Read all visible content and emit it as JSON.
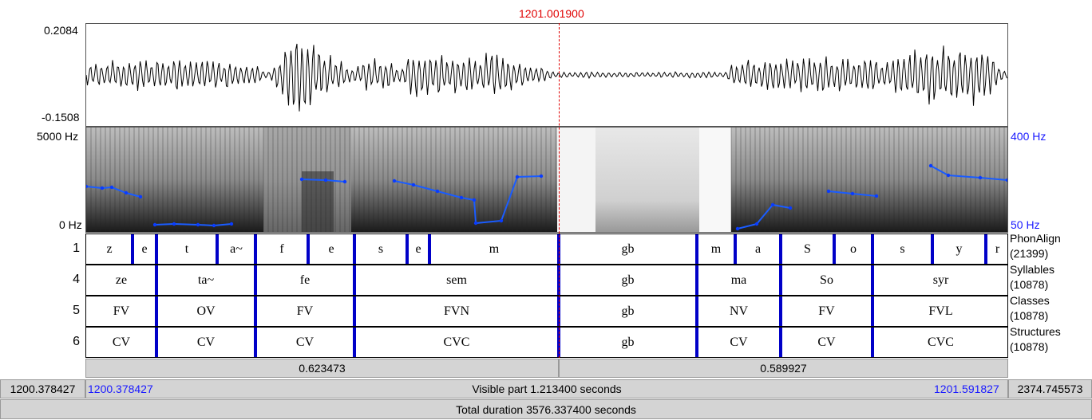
{
  "cursor_time": "1201.001900",
  "waveform": {
    "max_label": "0.2084",
    "min_label": "-0.1508"
  },
  "spectrogram": {
    "freq_top": "5000 Hz",
    "freq_bottom": "0 Hz",
    "pitch_top": "400 Hz",
    "pitch_bottom": "50 Hz"
  },
  "tiers": [
    {
      "number": "1",
      "name": "PhonAlign",
      "count": "(21399)",
      "intervals": [
        {
          "label": "z",
          "start": 0,
          "end": 58
        },
        {
          "label": "e",
          "start": 58,
          "end": 88
        },
        {
          "label": "t",
          "start": 88,
          "end": 164
        },
        {
          "label": "a~",
          "start": 164,
          "end": 212
        },
        {
          "label": "f",
          "start": 212,
          "end": 278
        },
        {
          "label": "e",
          "start": 278,
          "end": 336
        },
        {
          "label": "s",
          "start": 336,
          "end": 402
        },
        {
          "label": "e",
          "start": 402,
          "end": 430
        },
        {
          "label": "m",
          "start": 430,
          "end": 592
        },
        {
          "label": "gb",
          "start": 592,
          "end": 765
        },
        {
          "label": "m",
          "start": 765,
          "end": 813
        },
        {
          "label": "a",
          "start": 813,
          "end": 870
        },
        {
          "label": "S",
          "start": 870,
          "end": 937
        },
        {
          "label": "o",
          "start": 937,
          "end": 985
        },
        {
          "label": "s",
          "start": 985,
          "end": 1060
        },
        {
          "label": "y",
          "start": 1060,
          "end": 1127
        },
        {
          "label": "r",
          "start": 1127,
          "end": 1156
        }
      ]
    },
    {
      "number": "4",
      "name": "Syllables",
      "count": "(10878)",
      "intervals": [
        {
          "label": "ze",
          "start": 0,
          "end": 88
        },
        {
          "label": "ta~",
          "start": 88,
          "end": 212
        },
        {
          "label": "fe",
          "start": 212,
          "end": 336
        },
        {
          "label": "sem",
          "start": 336,
          "end": 592
        },
        {
          "label": "gb",
          "start": 592,
          "end": 765
        },
        {
          "label": "ma",
          "start": 765,
          "end": 870
        },
        {
          "label": "So",
          "start": 870,
          "end": 985
        },
        {
          "label": "syr",
          "start": 985,
          "end": 1156
        }
      ]
    },
    {
      "number": "5",
      "name": "Classes",
      "count": "(10878)",
      "intervals": [
        {
          "label": "FV",
          "start": 0,
          "end": 88
        },
        {
          "label": "OV",
          "start": 88,
          "end": 212
        },
        {
          "label": "FV",
          "start": 212,
          "end": 336
        },
        {
          "label": "FVN",
          "start": 336,
          "end": 592
        },
        {
          "label": "gb",
          "start": 592,
          "end": 765
        },
        {
          "label": "NV",
          "start": 765,
          "end": 870
        },
        {
          "label": "FV",
          "start": 870,
          "end": 985
        },
        {
          "label": "FVL",
          "start": 985,
          "end": 1156
        }
      ]
    },
    {
      "number": "6",
      "name": "Structures",
      "count": "(10878)",
      "intervals": [
        {
          "label": "CV",
          "start": 0,
          "end": 88
        },
        {
          "label": "CV",
          "start": 88,
          "end": 212
        },
        {
          "label": "CV",
          "start": 212,
          "end": 336
        },
        {
          "label": "CVC",
          "start": 336,
          "end": 592
        },
        {
          "label": "gb",
          "start": 592,
          "end": 765
        },
        {
          "label": "CV",
          "start": 765,
          "end": 870
        },
        {
          "label": "CV",
          "start": 870,
          "end": 985
        },
        {
          "label": "CVC",
          "start": 985,
          "end": 1156
        }
      ]
    }
  ],
  "selection": {
    "left_duration": "0.623473",
    "right_duration": "0.589927"
  },
  "footer": {
    "left_outside": "1200.378427",
    "visible_start": "1200.378427",
    "visible_part": "Visible part 1.213400 seconds",
    "visible_end": "1201.591827",
    "right_outside": "2374.745573",
    "total_duration": "Total duration 3576.337400 seconds"
  }
}
